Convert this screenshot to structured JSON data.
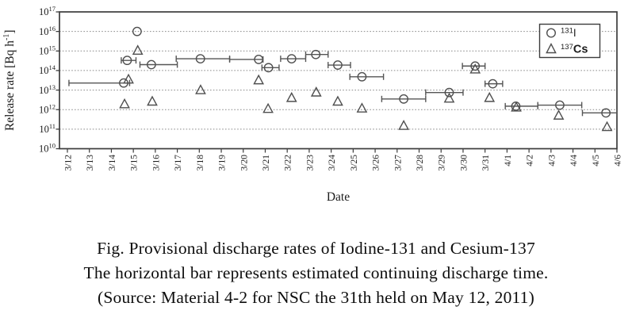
{
  "caption": {
    "line1": "Fig. Provisional discharge rates of Iodine-131 and Cesium-137",
    "line2": "The horizontal bar represents estimated continuing discharge time.",
    "line3": "(Source: Material 4-2 for NSC the 31th held on May 12, 2011)"
  },
  "chart_data": {
    "type": "scatter",
    "title": "",
    "x_axis": {
      "label": "Date",
      "x_unit": "days_since_3/12",
      "categories": [
        "3/12",
        "3/13",
        "3/14",
        "3/15",
        "3/16",
        "3/17",
        "3/18",
        "3/19",
        "3/20",
        "3/21",
        "3/22",
        "3/23",
        "3/24",
        "3/25",
        "3/26",
        "3/27",
        "3/28",
        "3/29",
        "3/30",
        "3/31",
        "4/1",
        "4/2",
        "4/3",
        "4/4",
        "4/5",
        "4/6"
      ]
    },
    "y_axis": {
      "label_pre": "Release rate [Bq h",
      "label_sup": "-1",
      "label_post": "]",
      "scale": "log",
      "tick_base": "10",
      "tick_exps": [
        17,
        16,
        15,
        14,
        13,
        12,
        11,
        10
      ],
      "gridline_exps": [
        16,
        15,
        14,
        13,
        12,
        11
      ],
      "exp_top": 17,
      "exp_bottom": 10,
      "grid": "dotted"
    },
    "legend": {
      "position": "top-right"
    },
    "style": {
      "marker_color": "#4f4f4f",
      "bar_color": "#555555",
      "grid_color": "#8a8a8a",
      "axis_color": "#3c3c3c",
      "text_color": "#1c1c1c",
      "background": "#ffffff"
    },
    "series": [
      {
        "id": "I-131",
        "label_sup": "131",
        "label_main": "I",
        "marker": "circle",
        "points": [
          {
            "x": 2.56,
            "v": 23000000000000.0,
            "bar": [
              0.07,
              2.83
            ]
          },
          {
            "x": 2.72,
            "v": 330000000000000.0,
            "bar": [
              2.45,
              3.12
            ]
          },
          {
            "x": 3.17,
            "v": 1e+16,
            "bar": null
          },
          {
            "x": 3.82,
            "v": 200000000000000.0,
            "bar": [
              3.3,
              5.0
            ]
          },
          {
            "x": 6.05,
            "v": 400000000000000.0,
            "bar": [
              4.95,
              7.38
            ]
          },
          {
            "x": 8.7,
            "v": 370000000000000.0,
            "bar": [
              7.38,
              8.9
            ]
          },
          {
            "x": 9.15,
            "v": 140000000000000.0,
            "bar": [
              8.85,
              9.63
            ]
          },
          {
            "x": 10.2,
            "v": 400000000000000.0,
            "bar": [
              9.7,
              10.84
            ]
          },
          {
            "x": 11.3,
            "v": 660000000000000.0,
            "bar": [
              10.84,
              11.86
            ]
          },
          {
            "x": 12.3,
            "v": 190000000000000.0,
            "bar": [
              11.86,
              12.88
            ]
          },
          {
            "x": 13.4,
            "v": 48000000000000.0,
            "bar": [
              12.85,
              14.38
            ]
          },
          {
            "x": 15.3,
            "v": 3500000000000.0,
            "bar": [
              14.3,
              16.3
            ]
          },
          {
            "x": 17.37,
            "v": 7500000000000.0,
            "bar": [
              16.3,
              18.0
            ]
          },
          {
            "x": 18.55,
            "v": 170000000000000.0,
            "bar": [
              17.97,
              19.0
            ]
          },
          {
            "x": 19.35,
            "v": 21000000000000.0,
            "bar": [
              19.0,
              19.8
            ]
          },
          {
            "x": 20.4,
            "v": 1500000000000.0,
            "bar": [
              19.92,
              21.4
            ]
          },
          {
            "x": 22.4,
            "v": 1700000000000.0,
            "bar": [
              21.4,
              23.4
            ]
          },
          {
            "x": 24.5,
            "v": 680000000000.0,
            "bar": [
              23.43,
              25.0
            ]
          }
        ]
      },
      {
        "id": "Cs-137",
        "label_sup": "137",
        "label_main": "Cs",
        "marker": "triangle",
        "points": [
          {
            "x": 2.6,
            "v": 1900000000000.0,
            "bar": null
          },
          {
            "x": 2.78,
            "v": 35000000000000.0,
            "bar": null
          },
          {
            "x": 3.2,
            "v": 1050000000000000.0,
            "bar": null
          },
          {
            "x": 3.86,
            "v": 2600000000000.0,
            "bar": null
          },
          {
            "x": 6.06,
            "v": 10000000000000.0,
            "bar": null
          },
          {
            "x": 8.7,
            "v": 32000000000000.0,
            "bar": null
          },
          {
            "x": 9.13,
            "v": 1100000000000.0,
            "bar": null
          },
          {
            "x": 10.2,
            "v": 4000000000000.0,
            "bar": null
          },
          {
            "x": 11.32,
            "v": 7600000000000.0,
            "bar": null
          },
          {
            "x": 12.3,
            "v": 2600000000000.0,
            "bar": null
          },
          {
            "x": 13.4,
            "v": 1150000000000.0,
            "bar": null
          },
          {
            "x": 15.3,
            "v": 150000000000.0,
            "bar": null
          },
          {
            "x": 17.37,
            "v": 3700000000000.0,
            "bar": null
          },
          {
            "x": 18.55,
            "v": 115000000000000.0,
            "bar": null
          },
          {
            "x": 19.2,
            "v": 4000000000000.0,
            "bar": null
          },
          {
            "x": 20.42,
            "v": 1300000000000.0,
            "bar": null
          },
          {
            "x": 22.35,
            "v": 500000000000.0,
            "bar": null
          },
          {
            "x": 24.55,
            "v": 130000000000.0,
            "bar": null
          }
        ]
      }
    ]
  }
}
